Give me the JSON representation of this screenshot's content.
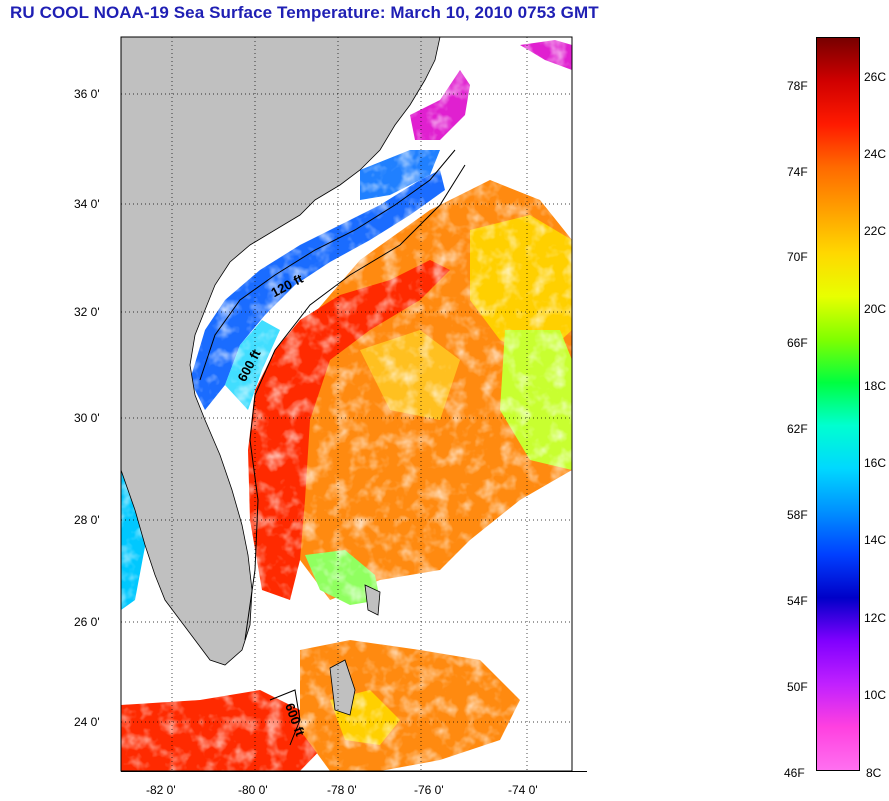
{
  "title": "RU COOL  NOAA-19  Sea Surface Temperature:  March 10, 2010 0753 GMT",
  "map": {
    "lat_labels": [
      "36 0'",
      "34 0'",
      "32 0'",
      "30 0'",
      "28 0'",
      "26 0'",
      "24 0'"
    ],
    "lon_labels": [
      "-82 0'",
      "-80 0'",
      "-78 0'",
      "-76 0'",
      "-74 0'"
    ],
    "contour_labels": [
      "120 ft",
      "600 ft",
      "600 ft"
    ],
    "colors": {
      "land": "#c0c0c0",
      "cloud": "#ffffff",
      "gulf_stream": "#ff2a00",
      "warm_offshore": "#ff8a10",
      "mid_shelf": "#ffd000",
      "cool_shelf": "#1a6cff",
      "nearshore": "#e020d0"
    }
  },
  "colorbar": {
    "fahrenheit_labels": [
      "78F",
      "74F",
      "70F",
      "66F",
      "62F",
      "58F",
      "54F",
      "50F",
      "46F"
    ],
    "celsius_labels": [
      "26C",
      "24C",
      "22C",
      "20C",
      "18C",
      "16C",
      "14C",
      "12C",
      "10C",
      "8C"
    ],
    "colors_top_to_bottom": [
      "#780000",
      "#d00000",
      "#ff1a00",
      "#ff6a00",
      "#ffa000",
      "#ffd800",
      "#e8ff00",
      "#80ff00",
      "#00ff40",
      "#00ffd0",
      "#00d8ff",
      "#0090ff",
      "#0040ff",
      "#0000c8",
      "#8000ff",
      "#c020ff",
      "#ff40e0",
      "#ff70f0"
    ]
  }
}
